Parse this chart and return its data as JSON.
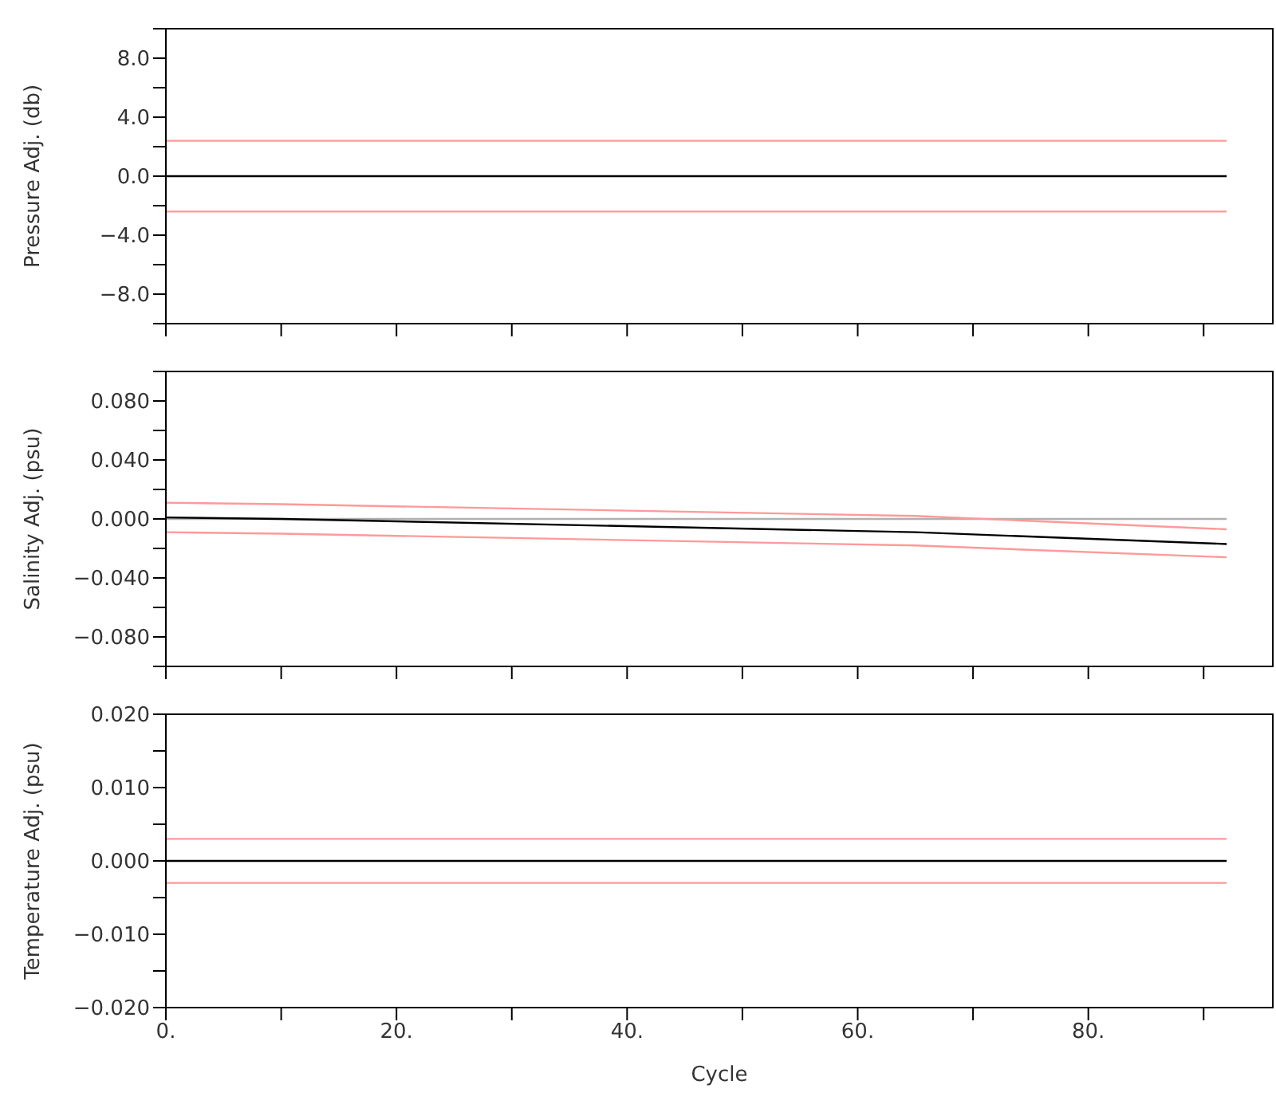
{
  "chart_data": [
    {
      "type": "line",
      "ylabel": "Pressure Adj. (db)",
      "tick_labels": "y",
      "grid": false,
      "marker": "none",
      "line_style": "solid",
      "xlim": [
        0,
        96
      ],
      "xticks": [
        {
          "value": 0,
          "label": null
        },
        {
          "value": 10,
          "label": null
        },
        {
          "value": 20,
          "label": null
        },
        {
          "value": 30,
          "label": null
        },
        {
          "value": 40,
          "label": null
        },
        {
          "value": 50,
          "label": null
        },
        {
          "value": 60,
          "label": null
        },
        {
          "value": 70,
          "label": null
        },
        {
          "value": 80,
          "label": null
        },
        {
          "value": 90,
          "label": null
        }
      ],
      "ylim": [
        -10,
        10
      ],
      "yticks": [
        {
          "value": -10,
          "label": null
        },
        {
          "value": -8,
          "label": "−8.0"
        },
        {
          "value": -6,
          "label": null
        },
        {
          "value": -4,
          "label": "−4.0"
        },
        {
          "value": -2,
          "label": null
        },
        {
          "value": 0,
          "label": "0.0"
        },
        {
          "value": 2,
          "label": null
        },
        {
          "value": 4,
          "label": "4.0"
        },
        {
          "value": 6,
          "label": null
        },
        {
          "value": 8,
          "label": "8.0"
        },
        {
          "value": 10,
          "label": null
        }
      ],
      "series": [
        {
          "color": "#ff9999",
          "x": [
            0,
            92
          ],
          "values": [
            2.4,
            2.4
          ]
        },
        {
          "color": "#ff9999",
          "x": [
            0,
            92
          ],
          "values": [
            -2.4,
            -2.4
          ]
        },
        {
          "color": "#000000",
          "x": [
            0,
            92
          ],
          "values": [
            0,
            0
          ]
        }
      ]
    },
    {
      "type": "line",
      "ylabel": "Salinity Adj. (psu)",
      "tick_labels": "y",
      "grid": false,
      "marker": "none",
      "line_style": "solid",
      "xlim": [
        0,
        96
      ],
      "xticks": [
        {
          "value": 0,
          "label": null
        },
        {
          "value": 10,
          "label": null
        },
        {
          "value": 20,
          "label": null
        },
        {
          "value": 30,
          "label": null
        },
        {
          "value": 40,
          "label": null
        },
        {
          "value": 50,
          "label": null
        },
        {
          "value": 60,
          "label": null
        },
        {
          "value": 70,
          "label": null
        },
        {
          "value": 80,
          "label": null
        },
        {
          "value": 90,
          "label": null
        }
      ],
      "ylim": [
        -0.1,
        0.1
      ],
      "yticks": [
        {
          "value": -0.1,
          "label": null
        },
        {
          "value": -0.08,
          "label": "−0.080"
        },
        {
          "value": -0.06,
          "label": null
        },
        {
          "value": -0.04,
          "label": "−0.040"
        },
        {
          "value": -0.02,
          "label": null
        },
        {
          "value": 0,
          "label": "0.000"
        },
        {
          "value": 0.02,
          "label": null
        },
        {
          "value": 0.04,
          "label": "0.040"
        },
        {
          "value": 0.06,
          "label": null
        },
        {
          "value": 0.08,
          "label": "0.080"
        },
        {
          "value": 0.1,
          "label": null
        }
      ],
      "series": [
        {
          "color": "#b0b0b0",
          "x": [
            0,
            92
          ],
          "values": [
            0,
            0
          ]
        },
        {
          "color": "#ff9999",
          "x": [
            0,
            10,
            65,
            92
          ],
          "values": [
            0.011,
            0.01,
            0.002,
            -0.007
          ]
        },
        {
          "color": "#ff9999",
          "x": [
            0,
            10,
            65,
            92
          ],
          "values": [
            -0.009,
            -0.01,
            -0.018,
            -0.026
          ]
        },
        {
          "color": "#000000",
          "x": [
            0,
            10,
            65,
            92
          ],
          "values": [
            0.001,
            0,
            -0.009,
            -0.017
          ]
        }
      ]
    },
    {
      "type": "line",
      "ylabel": "Temperature Adj. (psu)",
      "xlabel": "Cycle",
      "grid": false,
      "marker": "none",
      "line_style": "solid",
      "xlim": [
        0,
        96
      ],
      "xticks": [
        {
          "value": 0,
          "label": "0."
        },
        {
          "value": 10,
          "label": null
        },
        {
          "value": 20,
          "label": "20."
        },
        {
          "value": 30,
          "label": null
        },
        {
          "value": 40,
          "label": "40."
        },
        {
          "value": 50,
          "label": null
        },
        {
          "value": 60,
          "label": "60."
        },
        {
          "value": 70,
          "label": null
        },
        {
          "value": 80,
          "label": "80."
        },
        {
          "value": 90,
          "label": null
        }
      ],
      "ylim": [
        -0.02,
        0.02
      ],
      "yticks": [
        {
          "value": -0.02,
          "label": "−0.020"
        },
        {
          "value": -0.015,
          "label": null
        },
        {
          "value": -0.01,
          "label": "−0.010"
        },
        {
          "value": -0.005,
          "label": null
        },
        {
          "value": 0,
          "label": "0.000"
        },
        {
          "value": 0.005,
          "label": null
        },
        {
          "value": 0.01,
          "label": "0.010"
        },
        {
          "value": 0.015,
          "label": null
        },
        {
          "value": 0.02,
          "label": "0.020"
        }
      ],
      "series": [
        {
          "color": "#ff9999",
          "x": [
            0,
            92
          ],
          "values": [
            0.003,
            0.003
          ]
        },
        {
          "color": "#ff9999",
          "x": [
            0,
            92
          ],
          "values": [
            -0.003,
            -0.003
          ]
        },
        {
          "color": "#000000",
          "x": [
            0,
            92
          ],
          "values": [
            0,
            0
          ]
        }
      ]
    }
  ]
}
